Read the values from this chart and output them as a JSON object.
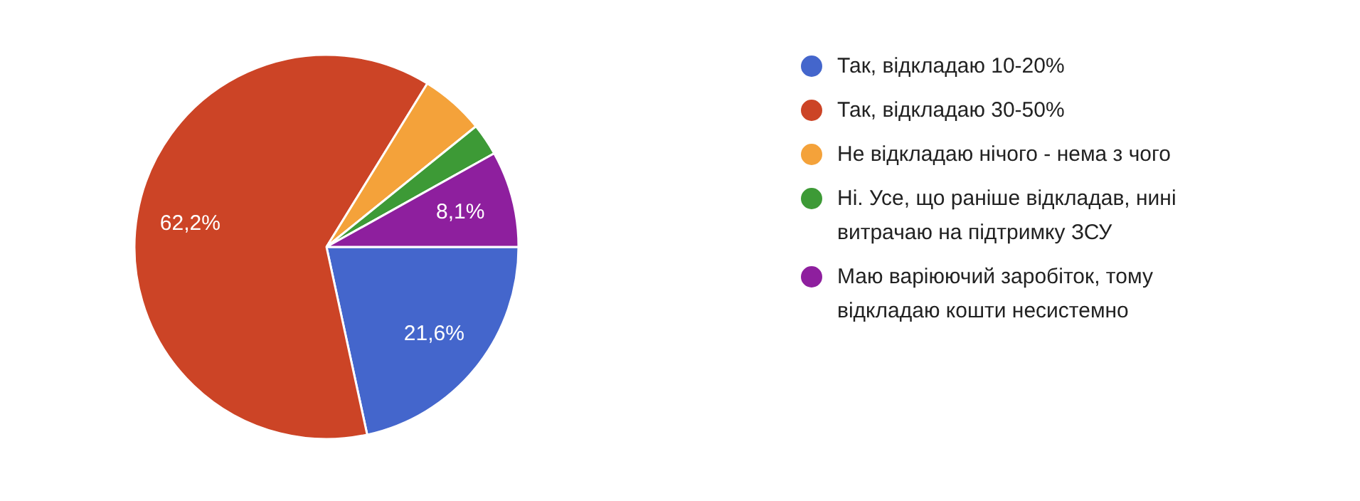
{
  "chart_data": {
    "type": "pie",
    "categories": [
      "Так, відкладаю 10-20%",
      "Так, відкладаю 30-50%",
      "Не відкладаю нічого - нема з чого",
      "Ні. Усе, що раніше відкладав, нині витрачаю на підтримку ЗСУ",
      "Маю варіюючий заробіток, тому відкладаю кошти несистемно"
    ],
    "values": [
      21.6,
      62.2,
      5.4,
      2.7,
      8.1
    ],
    "colors": [
      "#4466cc",
      "#cc4426",
      "#f4a23a",
      "#3d9a36",
      "#8e1f9e"
    ],
    "value_labels": [
      "21,6%",
      "62,2%",
      null,
      null,
      "8,1%"
    ],
    "legend": "right"
  }
}
